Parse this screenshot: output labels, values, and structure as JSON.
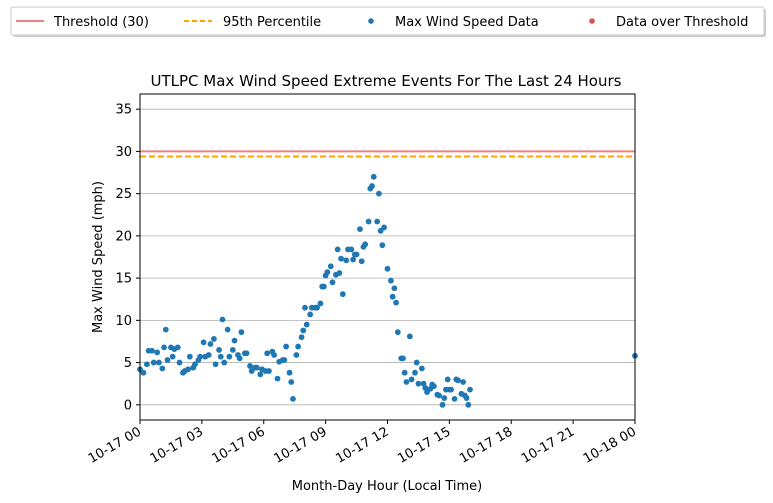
{
  "chart_data": {
    "type": "scatter",
    "title": "UTLPC Max Wind Speed Extreme Events For The Last 24 Hours",
    "xlabel": "Month-Day Hour (Local Time)",
    "ylabel": "Max Wind Speed (mph)",
    "xlim": [
      "10-17 00:00",
      "10-18 00:00"
    ],
    "ylim": [
      -1.8,
      36.8
    ],
    "x_ticks": [
      "10-17 00",
      "10-17 03",
      "10-17 06",
      "10-17 09",
      "10-17 12",
      "10-17 15",
      "10-17 18",
      "10-17 21",
      "10-18 00"
    ],
    "y_ticks": [
      0,
      5,
      10,
      15,
      20,
      25,
      30,
      35
    ],
    "grid": "horizontal",
    "legend_position": "top",
    "legend": [
      {
        "label": "Threshold (30)",
        "kind": "line",
        "color": "#f08080"
      },
      {
        "label": "95th Percentile",
        "kind": "dashed",
        "color": "#ffa500"
      },
      {
        "label": "Max Wind Speed Data",
        "kind": "marker",
        "color": "#1f77b4"
      },
      {
        "label": "Data over Threshold",
        "kind": "marker",
        "color": "#d9534f"
      }
    ],
    "threshold": 30,
    "percentile_95": 29.4,
    "series": [
      {
        "name": "Max Wind Speed Data",
        "color": "#1f77b4",
        "points": [
          [
            "10-17 00:00",
            4.2
          ],
          [
            "10-17 00:10",
            3.8
          ],
          [
            "10-17 00:20",
            4.8
          ],
          [
            "10-17 00:25",
            6.4
          ],
          [
            "10-17 00:35",
            6.4
          ],
          [
            "10-17 00:40",
            5.0
          ],
          [
            "10-17 00:50",
            6.2
          ],
          [
            "10-17 00:55",
            5.0
          ],
          [
            "10-17 01:05",
            4.3
          ],
          [
            "10-17 01:10",
            6.8
          ],
          [
            "10-17 01:15",
            8.9
          ],
          [
            "10-17 01:20",
            5.3
          ],
          [
            "10-17 01:30",
            6.8
          ],
          [
            "10-17 01:35",
            5.7
          ],
          [
            "10-17 01:40",
            6.6
          ],
          [
            "10-17 01:50",
            6.8
          ],
          [
            "10-17 01:55",
            5.0
          ],
          [
            "10-17 02:05",
            3.8
          ],
          [
            "10-17 02:10",
            4.0
          ],
          [
            "10-17 02:20",
            4.2
          ],
          [
            "10-17 02:25",
            5.7
          ],
          [
            "10-17 02:35",
            4.4
          ],
          [
            "10-17 02:40",
            4.8
          ],
          [
            "10-17 02:50",
            5.3
          ],
          [
            "10-17 02:55",
            5.7
          ],
          [
            "10-17 03:05",
            7.4
          ],
          [
            "10-17 03:10",
            5.7
          ],
          [
            "10-17 03:20",
            5.9
          ],
          [
            "10-17 03:25",
            7.2
          ],
          [
            "10-17 03:35",
            7.8
          ],
          [
            "10-17 03:40",
            4.8
          ],
          [
            "10-17 03:50",
            6.5
          ],
          [
            "10-17 03:55",
            5.7
          ],
          [
            "10-17 04:00",
            10.1
          ],
          [
            "10-17 04:05",
            5.0
          ],
          [
            "10-17 04:15",
            8.9
          ],
          [
            "10-17 04:20",
            5.7
          ],
          [
            "10-17 04:30",
            6.5
          ],
          [
            "10-17 04:35",
            7.6
          ],
          [
            "10-17 04:45",
            5.9
          ],
          [
            "10-17 04:50",
            5.5
          ],
          [
            "10-17 04:55",
            8.6
          ],
          [
            "10-17 05:05",
            6.1
          ],
          [
            "10-17 05:10",
            6.1
          ],
          [
            "10-17 05:20",
            4.6
          ],
          [
            "10-17 05:25",
            4.0
          ],
          [
            "10-17 05:35",
            4.4
          ],
          [
            "10-17 05:40",
            4.4
          ],
          [
            "10-17 05:50",
            3.6
          ],
          [
            "10-17 05:55",
            4.2
          ],
          [
            "10-17 06:05",
            4.0
          ],
          [
            "10-17 06:10",
            6.1
          ],
          [
            "10-17 06:15",
            4.0
          ],
          [
            "10-17 06:25",
            6.3
          ],
          [
            "10-17 06:30",
            5.9
          ],
          [
            "10-17 06:40",
            3.1
          ],
          [
            "10-17 06:45",
            5.1
          ],
          [
            "10-17 06:55",
            5.3
          ],
          [
            "10-17 07:00",
            5.3
          ],
          [
            "10-17 07:05",
            6.9
          ],
          [
            "10-17 07:15",
            3.8
          ],
          [
            "10-17 07:20",
            2.7
          ],
          [
            "10-17 07:25",
            0.7
          ],
          [
            "10-17 07:35",
            5.9
          ],
          [
            "10-17 07:40",
            6.9
          ],
          [
            "10-17 07:50",
            8.0
          ],
          [
            "10-17 07:55",
            8.8
          ],
          [
            "10-17 08:00",
            11.5
          ],
          [
            "10-17 08:05",
            9.5
          ],
          [
            "10-17 08:15",
            10.7
          ],
          [
            "10-17 08:20",
            11.5
          ],
          [
            "10-17 08:30",
            11.5
          ],
          [
            "10-17 08:35",
            11.5
          ],
          [
            "10-17 08:45",
            12.0
          ],
          [
            "10-17 08:50",
            14.0
          ],
          [
            "10-17 08:55",
            14.0
          ],
          [
            "10-17 09:00",
            15.3
          ],
          [
            "10-17 09:05",
            15.7
          ],
          [
            "10-17 09:15",
            16.4
          ],
          [
            "10-17 09:20",
            14.5
          ],
          [
            "10-17 09:30",
            15.4
          ],
          [
            "10-17 09:35",
            18.4
          ],
          [
            "10-17 09:40",
            15.6
          ],
          [
            "10-17 09:45",
            17.3
          ],
          [
            "10-17 09:50",
            13.1
          ],
          [
            "10-17 10:00",
            17.1
          ],
          [
            "10-17 10:05",
            18.4
          ],
          [
            "10-17 10:15",
            18.4
          ],
          [
            "10-17 10:20",
            17.2
          ],
          [
            "10-17 10:25",
            17.8
          ],
          [
            "10-17 10:30",
            17.8
          ],
          [
            "10-17 10:40",
            20.8
          ],
          [
            "10-17 10:45",
            17.0
          ],
          [
            "10-17 10:50",
            18.7
          ],
          [
            "10-17 10:55",
            19.0
          ],
          [
            "10-17 11:05",
            21.7
          ],
          [
            "10-17 11:10",
            25.6
          ],
          [
            "10-17 11:15",
            25.9
          ],
          [
            "10-17 11:20",
            27.0
          ],
          [
            "10-17 11:30",
            21.7
          ],
          [
            "10-17 11:35",
            25.0
          ],
          [
            "10-17 11:40",
            20.6
          ],
          [
            "10-17 11:45",
            18.9
          ],
          [
            "10-17 11:50",
            21.0
          ],
          [
            "10-17 12:00",
            16.1
          ],
          [
            "10-17 12:10",
            14.7
          ],
          [
            "10-17 12:15",
            12.8
          ],
          [
            "10-17 12:20",
            13.8
          ],
          [
            "10-17 12:25",
            12.1
          ],
          [
            "10-17 12:30",
            8.6
          ],
          [
            "10-17 12:40",
            5.5
          ],
          [
            "10-17 12:45",
            5.5
          ],
          [
            "10-17 12:50",
            3.8
          ],
          [
            "10-17 12:55",
            2.7
          ],
          [
            "10-17 13:05",
            8.1
          ],
          [
            "10-17 13:10",
            3.0
          ],
          [
            "10-17 13:20",
            3.8
          ],
          [
            "10-17 13:25",
            5.0
          ],
          [
            "10-17 13:30",
            2.5
          ],
          [
            "10-17 13:40",
            4.3
          ],
          [
            "10-17 13:45",
            2.5
          ],
          [
            "10-17 13:50",
            2.0
          ],
          [
            "10-17 13:55",
            1.5
          ],
          [
            "10-17 14:05",
            1.9
          ],
          [
            "10-17 14:10",
            2.4
          ],
          [
            "10-17 14:15",
            2.2
          ],
          [
            "10-17 14:25",
            1.2
          ],
          [
            "10-17 14:30",
            1.1
          ],
          [
            "10-17 14:40",
            0.0
          ],
          [
            "10-17 14:45",
            0.8
          ],
          [
            "10-17 14:50",
            1.8
          ],
          [
            "10-17 14:55",
            3.0
          ],
          [
            "10-17 15:00",
            1.8
          ],
          [
            "10-17 15:05",
            1.8
          ],
          [
            "10-17 15:15",
            0.7
          ],
          [
            "10-17 15:20",
            3.0
          ],
          [
            "10-17 15:25",
            2.9
          ],
          [
            "10-17 15:35",
            1.3
          ],
          [
            "10-17 15:40",
            2.7
          ],
          [
            "10-17 15:45",
            1.1
          ],
          [
            "10-17 15:50",
            0.8
          ],
          [
            "10-17 15:55",
            0.0
          ],
          [
            "10-17 16:00",
            1.8
          ],
          [
            "10-18 00:00",
            5.8
          ]
        ]
      },
      {
        "name": "Data over Threshold",
        "color": "#d9534f",
        "points": []
      }
    ]
  }
}
